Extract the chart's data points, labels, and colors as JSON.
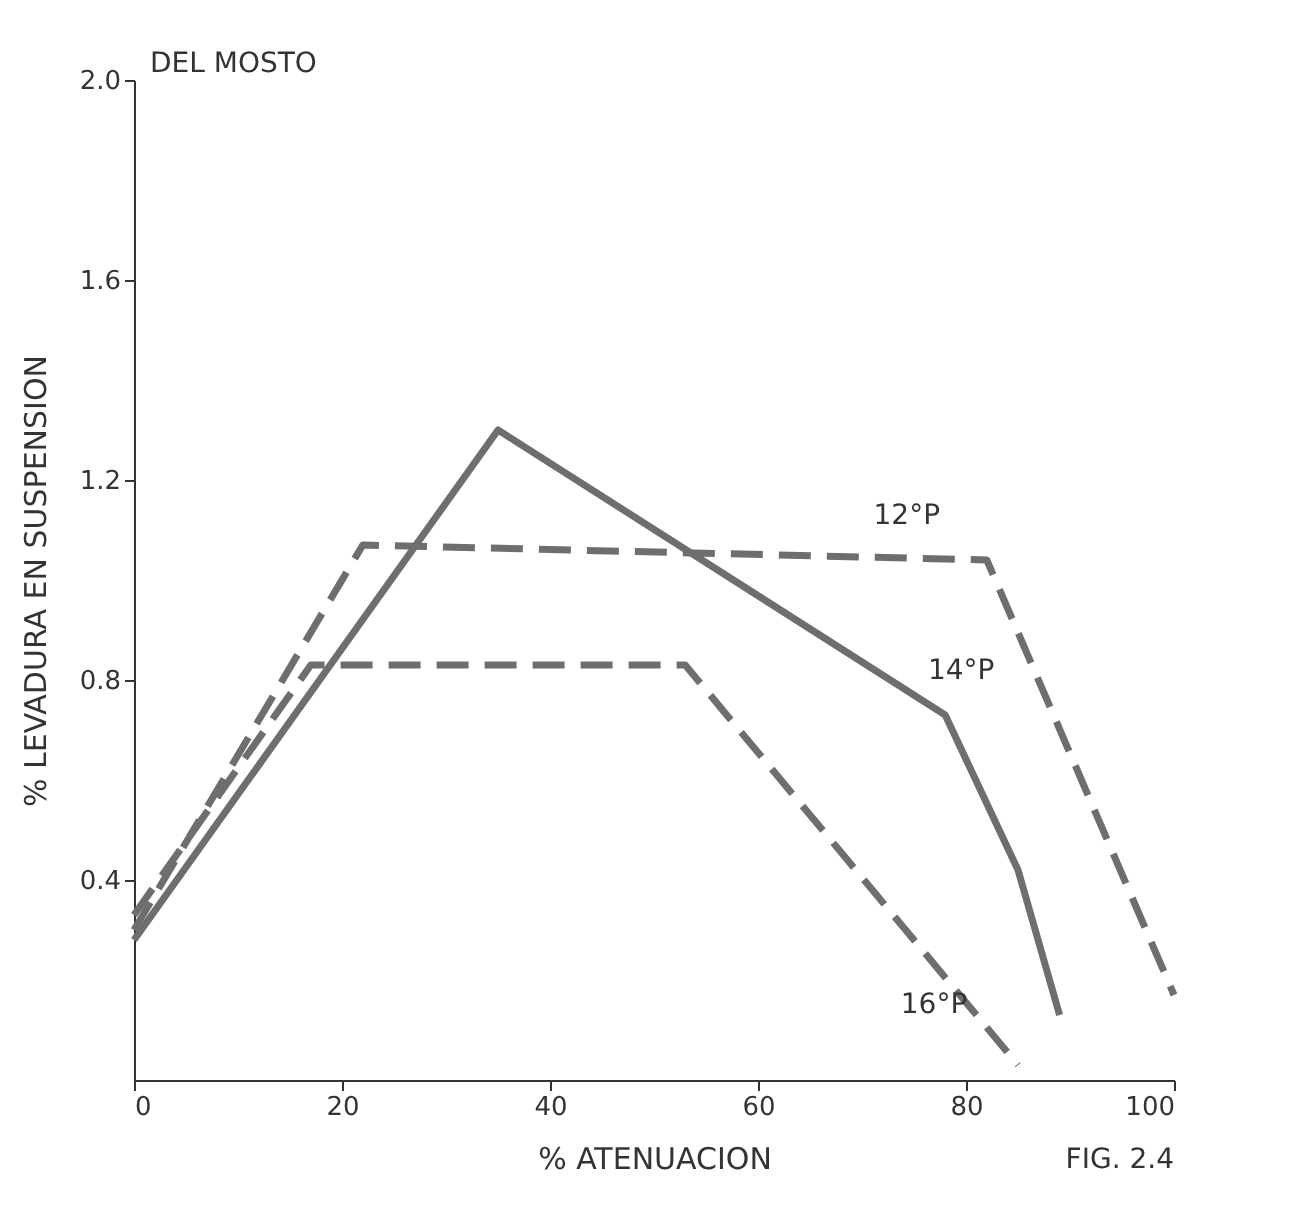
{
  "chart_data": {
    "type": "line",
    "xlabel": "% ATENUACION",
    "ylabel": "% LEVADURA EN SUSPENSION",
    "xlim": [
      0,
      100
    ],
    "xticks": [
      0,
      20,
      40,
      60,
      80,
      100
    ],
    "ylim": [
      0,
      2.0
    ],
    "yticks": [
      0.4,
      0.8,
      1.2,
      1.6,
      {
        "value": 2,
        "label": "2.0"
      }
    ],
    "grid": false,
    "legend": false,
    "marker": "none",
    "series": [
      {
        "name": "12°P",
        "x": [
          0,
          22,
          82,
          100
        ],
        "values": [
          0.3,
          1.07,
          1.04,
          0.17
        ],
        "color": "#6e6e6e",
        "line_style": "dashed"
      },
      {
        "name": "14°P",
        "x": [
          0,
          35,
          78,
          85,
          89
        ],
        "values": [
          0.28,
          1.3,
          0.73,
          0.42,
          0.13
        ],
        "color": "#6e6e6e",
        "line_style": "solid"
      },
      {
        "name": "16°P",
        "x": [
          0,
          17,
          53,
          85
        ],
        "values": [
          0.33,
          0.83,
          0.83,
          0.03
        ],
        "color": "#6e6e6e",
        "line_style": "dashed"
      }
    ],
    "annotations": [
      "DEL MOSTO",
      "FIG. 2.4"
    ]
  }
}
